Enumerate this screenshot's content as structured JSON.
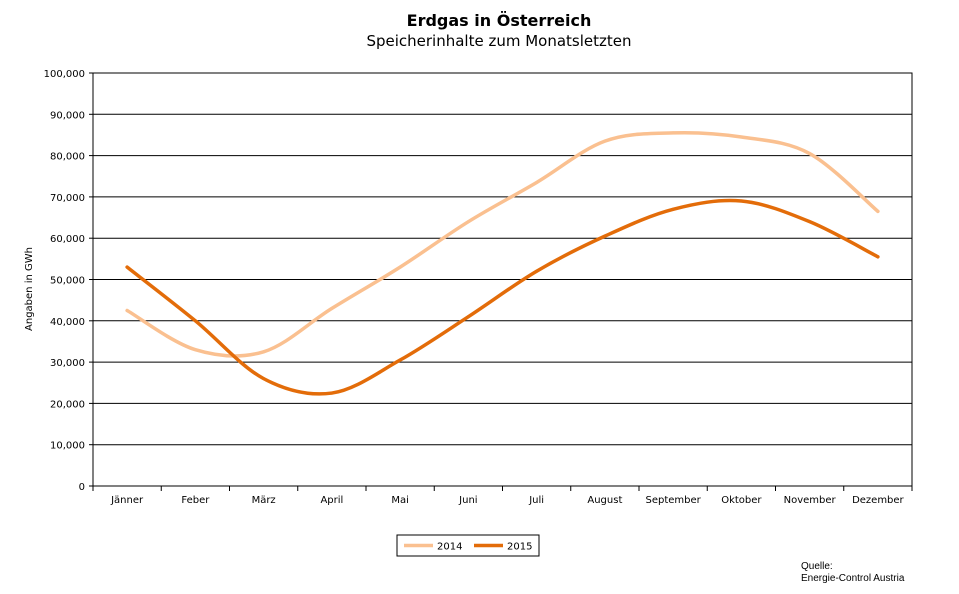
{
  "title": "Erdgas in Österreich",
  "subtitle": "Speicherinhalte zum Monatsletzten",
  "source": {
    "label": "Quelle:",
    "name": "Energie-Control Austria"
  },
  "chart_data": {
    "type": "line",
    "categories": [
      "Jänner",
      "Feber",
      "März",
      "April",
      "Mai",
      "Juni",
      "Juli",
      "August",
      "September",
      "Oktober",
      "November",
      "Dezember"
    ],
    "series": [
      {
        "name": "2014",
        "color": "#fac090",
        "values": [
          42500,
          33000,
          32500,
          43000,
          53000,
          64000,
          73500,
          83500,
          85500,
          84500,
          80500,
          66500
        ]
      },
      {
        "name": "2015",
        "color": "#e36c09",
        "values": [
          53000,
          40000,
          26000,
          22500,
          30500,
          41000,
          52000,
          60500,
          67000,
          69000,
          64000,
          55500
        ]
      }
    ],
    "ylabel": "Angaben in GWh",
    "xlabel": "",
    "ylim": [
      0,
      100000
    ],
    "yticks": [
      "0",
      "10,000",
      "20,000",
      "30,000",
      "40,000",
      "50,000",
      "60,000",
      "70,000",
      "80,000",
      "90,000",
      "100,000"
    ],
    "grid": true,
    "legend_position": "bottom"
  }
}
